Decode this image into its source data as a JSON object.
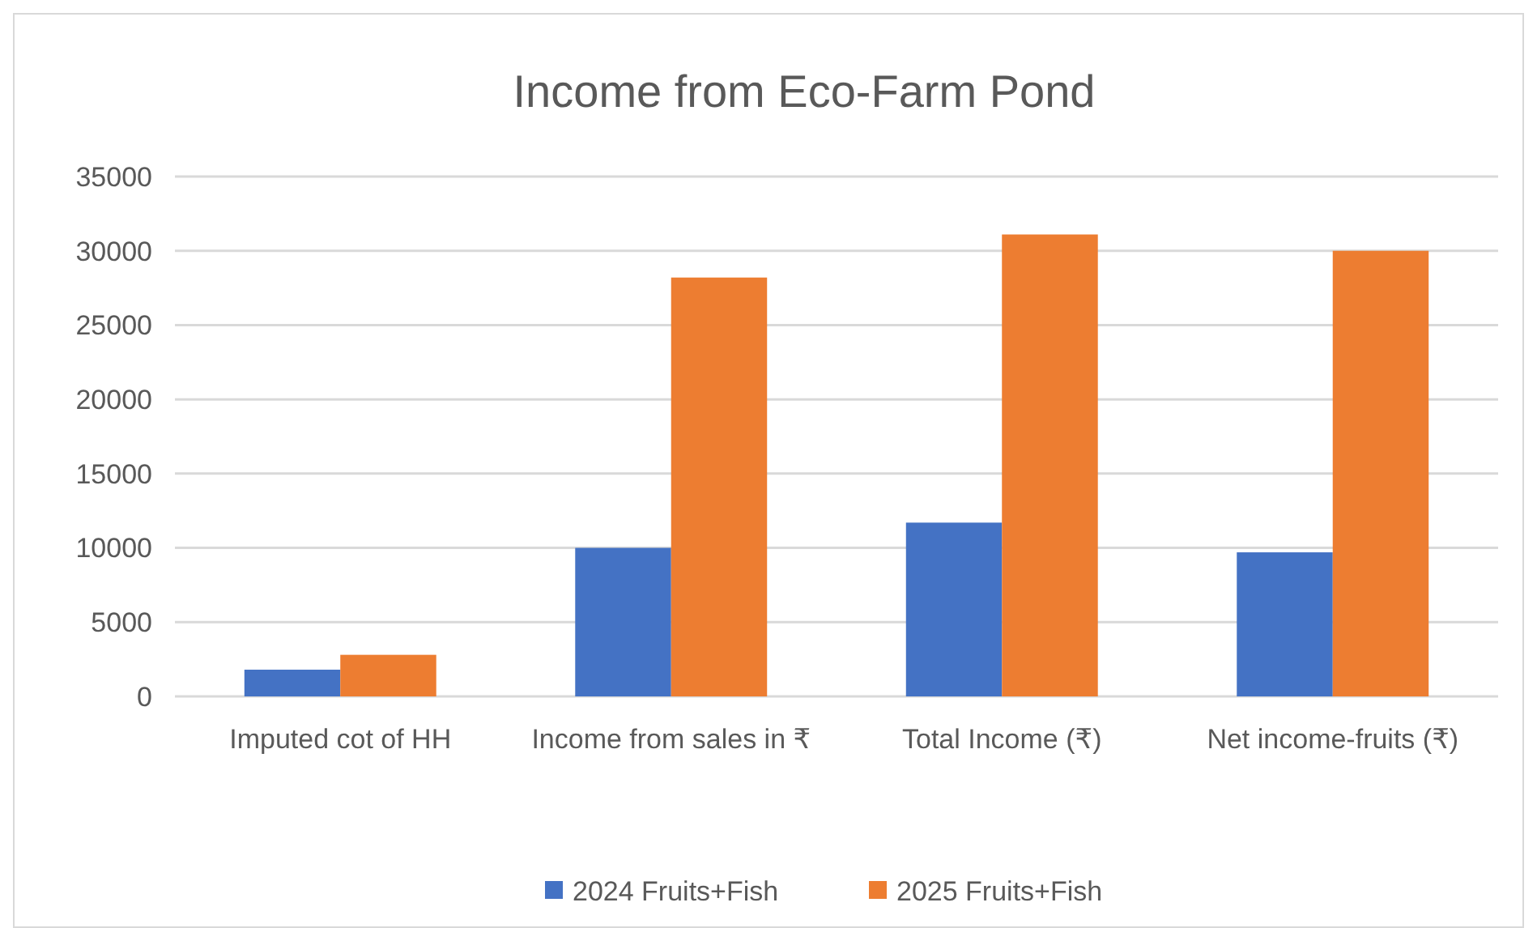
{
  "chart_data": {
    "type": "bar",
    "title": "Income from Eco-Farm Pond",
    "categories": [
      "Imputed cot of HH",
      "Income from sales in ₹",
      "Total Income (₹)",
      "Net income-fruits (₹)"
    ],
    "series": [
      {
        "name": "2024 Fruits+Fish",
        "color": "#4472c4",
        "values": [
          1800,
          10000,
          11700,
          9700
        ]
      },
      {
        "name": "2025 Fruits+Fish",
        "color": "#ed7d31",
        "values": [
          2800,
          28200,
          31100,
          30000
        ]
      }
    ],
    "ylim": [
      0,
      35000
    ],
    "yticks": [
      0,
      5000,
      10000,
      15000,
      20000,
      25000,
      30000,
      35000
    ],
    "grid": "y",
    "legend": "bottom"
  }
}
